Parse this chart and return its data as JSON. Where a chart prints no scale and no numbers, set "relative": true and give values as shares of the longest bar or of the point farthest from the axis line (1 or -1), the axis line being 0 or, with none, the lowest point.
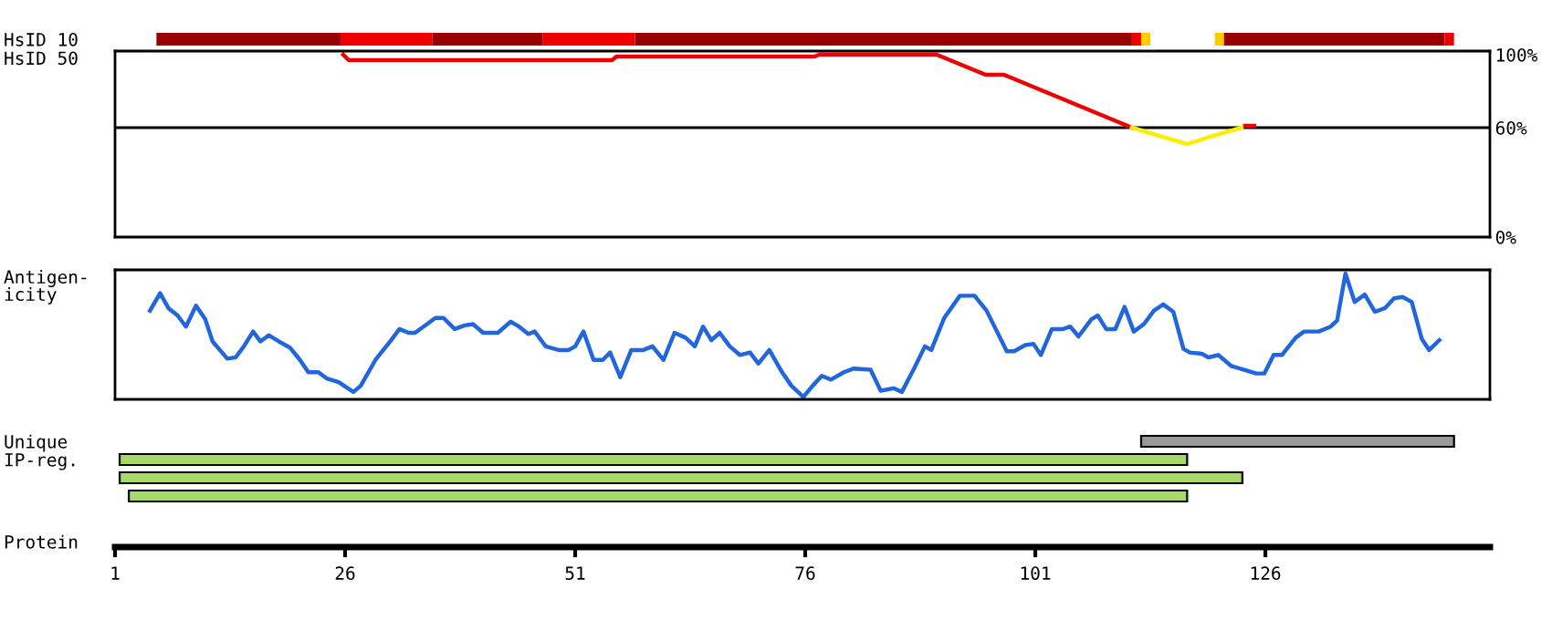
{
  "chart_data": [
    {
      "type": "bar",
      "orientation": "horizontal",
      "categories": [
        "HsID 10"
      ],
      "xlim": [
        1,
        150.4
      ],
      "tick_labels": "y",
      "series": [
        {
          "color": "#990000",
          "base": [
            5.5
          ],
          "values": [
            20
          ]
        },
        {
          "color": "#ee0000",
          "base": [
            25.5
          ],
          "values": [
            10
          ]
        },
        {
          "color": "#990000",
          "base": [
            35.5
          ],
          "values": [
            12
          ]
        },
        {
          "color": "#ee0000",
          "base": [
            47.5
          ],
          "values": [
            10
          ]
        },
        {
          "color": "#990000",
          "base": [
            57.5
          ],
          "values": [
            54
          ]
        },
        {
          "color": "#ee0000",
          "base": [
            111.5
          ],
          "values": [
            1
          ]
        },
        {
          "color": "#ffcc00",
          "base": [
            112.5
          ],
          "values": [
            1
          ]
        },
        {
          "color": "#ffcc00",
          "base": [
            120.5
          ],
          "values": [
            1
          ]
        },
        {
          "color": "#990000",
          "base": [
            121.5
          ],
          "values": [
            24
          ]
        },
        {
          "color": "#ee0000",
          "base": [
            145.5
          ],
          "values": [
            1
          ]
        }
      ]
    },
    {
      "type": "line",
      "ylabel": "HsID 50",
      "xlim": [
        1,
        150.4
      ],
      "ylim": [
        0,
        102
      ],
      "yticks": [
        {
          "value": 0,
          "label": "0%"
        },
        {
          "value": 60,
          "label": "60%"
        },
        {
          "value": 100,
          "label": "100%"
        }
      ],
      "tick_labels": "y",
      "ref_lines": [
        {
          "axis": "y",
          "value": 60,
          "color": "#000000"
        }
      ],
      "series": [
        {
          "color": "#ee0000",
          "x": [
            25.8,
            26.4,
            55,
            55.5,
            77,
            77.5,
            90.3,
            95.6,
            97.6,
            111.5,
            111.6,
            123.8,
            124.8
          ],
          "values": [
            100,
            97,
            97,
            99,
            99,
            100,
            100,
            89,
            89,
            60,
            null,
            61,
            61
          ]
        },
        {
          "color": "#ffee00",
          "x": [
            111.5,
            117.5,
            120,
            123.4
          ],
          "values": [
            60,
            51,
            55,
            60
          ]
        }
      ]
    },
    {
      "type": "line",
      "ylabel": "Antigen-\nicity",
      "relative": true,
      "xlim": [
        1,
        150.4
      ],
      "tick_labels": false,
      "series": [
        {
          "color": "#2266dd",
          "x": [
            4.8,
            5.9,
            6.8,
            7.8,
            8.7,
            9.8,
            10.8,
            11.6,
            13.2,
            14.1,
            15.0,
            16.0,
            16.8,
            17.7,
            18.8,
            20.0,
            21.1,
            22.0,
            23.1,
            24.0,
            25.3,
            26.9,
            27.7,
            29.3,
            31.0,
            31.9,
            32.9,
            33.6,
            34.9,
            35.8,
            36.7,
            37.9,
            39.0,
            39.9,
            41.0,
            42.6,
            44.0,
            44.9,
            45.9,
            46.6,
            47.8,
            49.2,
            50.3,
            51.0,
            51.9,
            53.0,
            54.0,
            54.8,
            55.9,
            57.1,
            58.4,
            59.4,
            60.6,
            61.8,
            63.0,
            64.0,
            64.9,
            65.8,
            66.7,
            67.8,
            68.9,
            70.0,
            70.9,
            72.1,
            73.4,
            74.5,
            75.8,
            76.8,
            77.8,
            78.8,
            80.2,
            81.3,
            83.1,
            84.2,
            85.6,
            86.5,
            87.9,
            89.0,
            89.7,
            91.1,
            92.8,
            94.4,
            95.7,
            97.9,
            98.7,
            99.9,
            100.8,
            101.6,
            102.8,
            104.0,
            104.8,
            105.7,
            107.1,
            107.8,
            108.7,
            109.7,
            110.7,
            111.7,
            112.8,
            113.9,
            114.9,
            116.0,
            117.1,
            117.8,
            119.1,
            119.8,
            120.9,
            122.3,
            123.7,
            125.0,
            125.9,
            126.9,
            127.8,
            129.3,
            130.2,
            131.8,
            133.1,
            133.8,
            134.7,
            135.7,
            136.8,
            137.9,
            139.0,
            140.0,
            140.9,
            141.9,
            143.0,
            143.8,
            144.9
          ],
          "values": [
            0.7,
            0.84,
            0.72,
            0.66,
            0.57,
            0.74,
            0.63,
            0.45,
            0.31,
            0.32,
            0.41,
            0.53,
            0.45,
            0.5,
            0.45,
            0.4,
            0.3,
            0.2,
            0.2,
            0.15,
            0.12,
            0.04,
            0.09,
            0.3,
            0.46,
            0.55,
            0.52,
            0.52,
            0.59,
            0.64,
            0.64,
            0.55,
            0.58,
            0.59,
            0.52,
            0.52,
            0.61,
            0.57,
            0.51,
            0.53,
            0.41,
            0.38,
            0.38,
            0.41,
            0.53,
            0.3,
            0.3,
            0.36,
            0.16,
            0.38,
            0.38,
            0.41,
            0.3,
            0.52,
            0.48,
            0.41,
            0.57,
            0.46,
            0.52,
            0.41,
            0.34,
            0.36,
            0.27,
            0.38,
            0.21,
            0.09,
            0,
            0.09,
            0.17,
            0.14,
            0.2,
            0.23,
            0.22,
            0.05,
            0.07,
            0.04,
            0.24,
            0.41,
            0.38,
            0.64,
            0.82,
            0.82,
            0.7,
            0.37,
            0.37,
            0.42,
            0.43,
            0.34,
            0.55,
            0.55,
            0.57,
            0.49,
            0.63,
            0.66,
            0.55,
            0.55,
            0.73,
            0.53,
            0.59,
            0.7,
            0.75,
            0.69,
            0.39,
            0.36,
            0.35,
            0.32,
            0.34,
            0.25,
            0.22,
            0.19,
            0.19,
            0.34,
            0.34,
            0.48,
            0.53,
            0.53,
            0.57,
            0.62,
            1,
            0.77,
            0.83,
            0.69,
            0.72,
            0.8,
            0.81,
            0.77,
            0.47,
            0.38,
            0.46
          ]
        }
      ]
    },
    {
      "type": "bar",
      "orientation": "horizontal",
      "xlabel": "Protein",
      "categories": [
        "Unique",
        "IP-reg.",
        null,
        null
      ],
      "values": [
        34,
        116,
        122,
        115
      ],
      "base": [
        112.5,
        1.5,
        1.5,
        2.5
      ],
      "colors": [
        "#999999",
        "#a6d96a",
        "#a6d96a",
        "#a6d96a"
      ],
      "xlim": [
        1,
        150.4
      ],
      "xticks": [
        1,
        26,
        51,
        76,
        101,
        126
      ]
    }
  ]
}
